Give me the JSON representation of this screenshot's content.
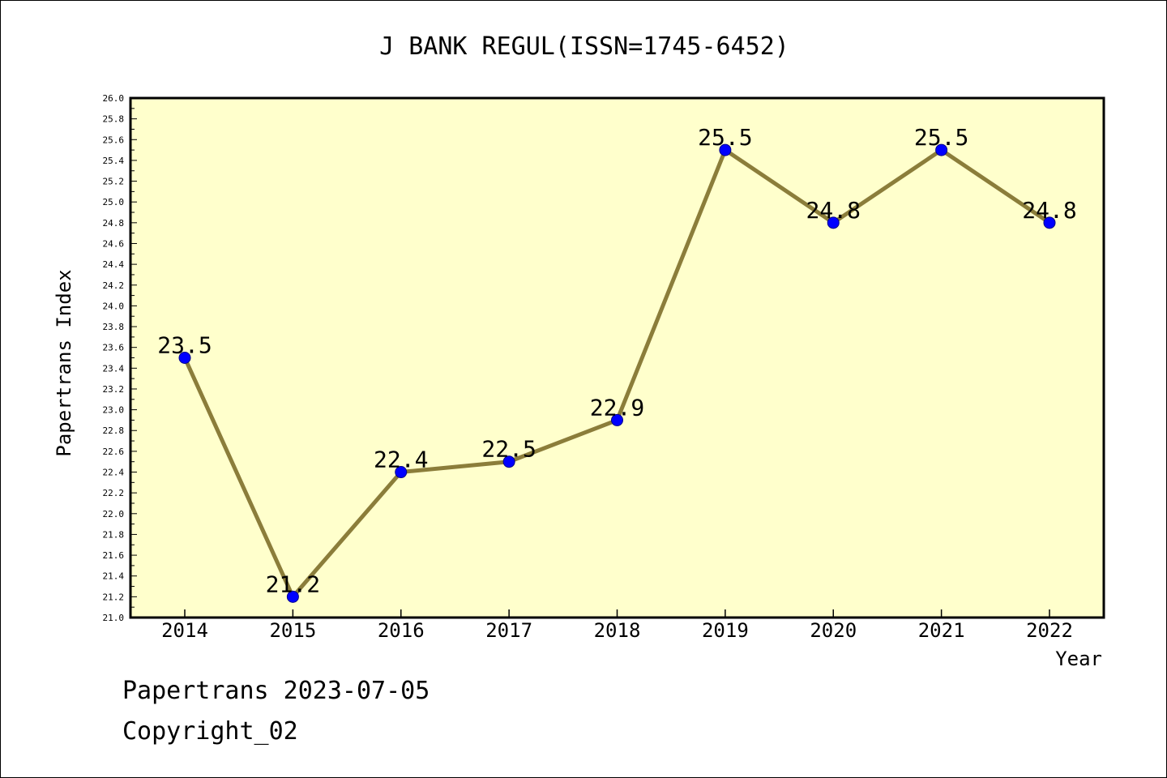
{
  "chart_data": {
    "type": "line",
    "title": "J BANK REGUL(ISSN=1745-6452)",
    "xlabel": "Year",
    "ylabel": "Papertrans Index",
    "x": [
      "2014",
      "2015",
      "2016",
      "2017",
      "2018",
      "2019",
      "2020",
      "2021",
      "2022"
    ],
    "values": [
      23.5,
      21.2,
      22.4,
      22.5,
      22.9,
      25.5,
      24.8,
      25.5,
      24.8
    ],
    "value_labels": [
      "23.5",
      "21.2",
      "22.4",
      "22.5",
      "22.9",
      "25.5",
      "24.8",
      "25.5",
      "24.8"
    ],
    "ylim": [
      21.0,
      26.0
    ],
    "ytick_step": 0.2,
    "grid": false,
    "colors": {
      "plot_background": "#ffffcc",
      "line": "#8b7d3a",
      "marker": "#0000ff"
    }
  },
  "footer": {
    "line1": "Papertrans 2023-07-05",
    "line2": "Copyright_02"
  }
}
